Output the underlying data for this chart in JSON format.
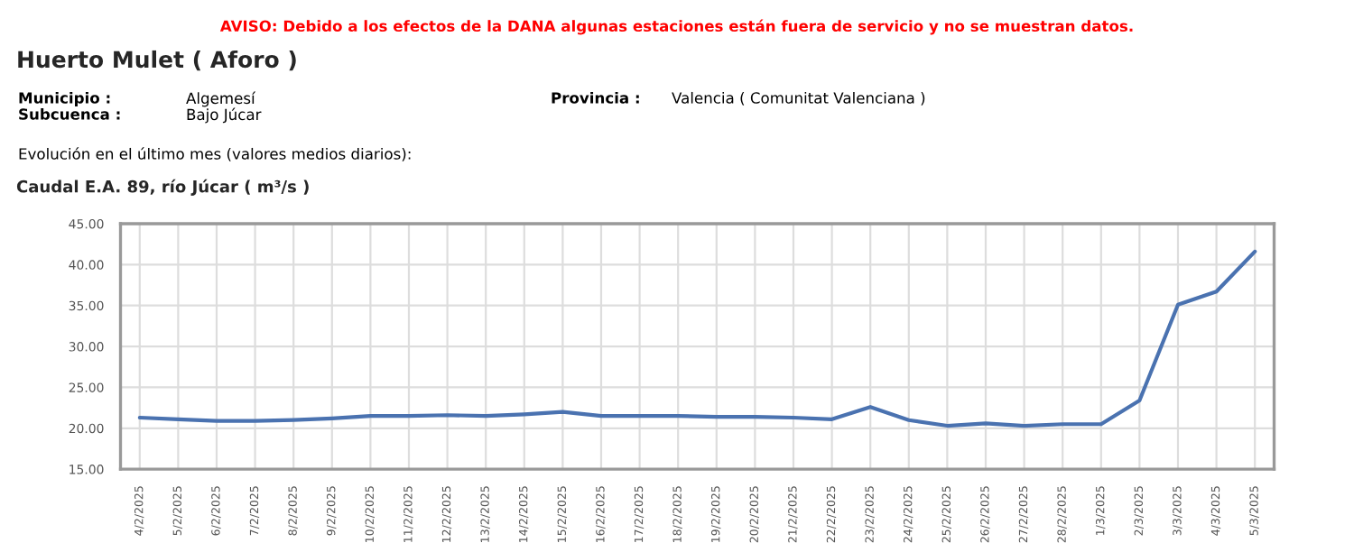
{
  "chart_data": {
    "type": "line",
    "title": "Huerto Mulet ( Aforo )",
    "subtitle": "Caudal E.A. 89, río Júcar ( m³/s )",
    "annotations": [
      "AVISO: Debido a los efectos de la DANA algunas estaciones están fuera de servicio y no se muestran datos.",
      "Municipio :",
      "Algemesí",
      "Subcuenca :",
      "Bajo Júcar",
      "Provincia :",
      "Valencia ( Comunitat Valenciana )",
      "Evolución en el último mes (valores medios diarios):"
    ],
    "categories": [
      "4/2/2025",
      "5/2/2025",
      "6/2/2025",
      "7/2/2025",
      "8/2/2025",
      "9/2/2025",
      "10/2/2025",
      "11/2/2025",
      "12/2/2025",
      "13/2/2025",
      "14/2/2025",
      "15/2/2025",
      "16/2/2025",
      "17/2/2025",
      "18/2/2025",
      "19/2/2025",
      "20/2/2025",
      "21/2/2025",
      "22/2/2025",
      "23/2/2025",
      "24/2/2025",
      "25/2/2025",
      "26/2/2025",
      "27/2/2025",
      "28/2/2025",
      "1/3/2025",
      "2/3/2025",
      "3/3/2025",
      "4/3/2025",
      "5/3/2025"
    ],
    "series": [
      {
        "color": "#4a72b0",
        "values": [
          21.3,
          21.1,
          20.9,
          20.9,
          21.0,
          21.2,
          21.5,
          21.5,
          21.6,
          21.5,
          21.7,
          22.0,
          21.5,
          21.5,
          21.5,
          21.4,
          21.4,
          21.3,
          21.1,
          22.6,
          21.0,
          20.3,
          20.6,
          20.3,
          20.5,
          20.5,
          23.4,
          35.1,
          36.7,
          41.6
        ]
      }
    ],
    "ylim": [
      15,
      45
    ],
    "yticks": [
      {
        "value": 15,
        "label": "15.00"
      },
      {
        "value": 20,
        "label": "20.00"
      },
      {
        "value": 25,
        "label": "25.00"
      },
      {
        "value": 30,
        "label": "30.00"
      },
      {
        "value": 35,
        "label": "35.00"
      },
      {
        "value": 40,
        "label": "40.00"
      },
      {
        "value": 45,
        "label": "45.00"
      }
    ],
    "grid": true,
    "marker": "none",
    "line_style": "solid"
  }
}
